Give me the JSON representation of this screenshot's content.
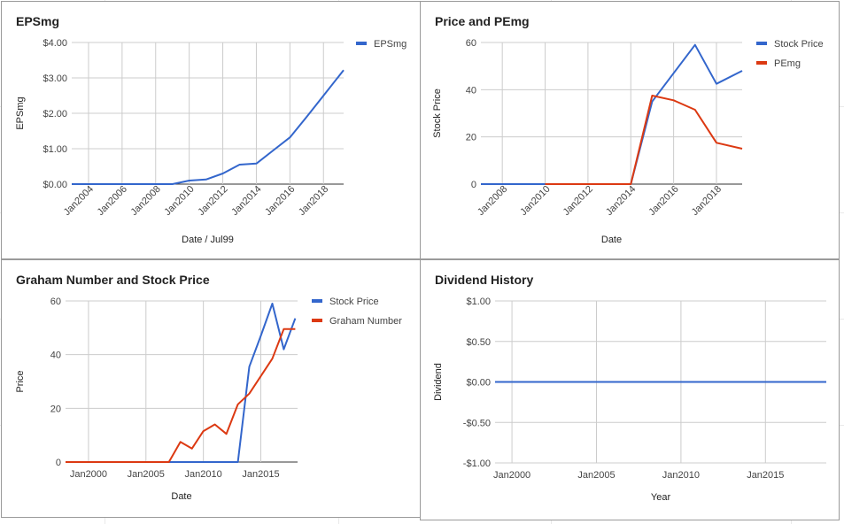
{
  "colors": {
    "blue": "#3366cc",
    "red": "#dc3912",
    "grid": "#cccccc",
    "baseline": "#333333"
  },
  "chart_data": [
    {
      "type": "line",
      "title": "EPSmg",
      "xlabel": "Date / Jul99",
      "ylabel": "EPSmg",
      "xlim": [
        2003,
        2019.2
      ],
      "ylim": [
        0,
        4
      ],
      "yticks": [
        0,
        1,
        2,
        3,
        4
      ],
      "ytick_labels": [
        "$0.00",
        "$1.00",
        "$2.00",
        "$3.00",
        "$4.00"
      ],
      "xticks": [
        2004,
        2006,
        2008,
        2010,
        2012,
        2014,
        2016,
        2018
      ],
      "xtick_labels": [
        "Jan2004",
        "Jan2006",
        "Jan2008",
        "Jan2010",
        "Jan2012",
        "Jan2014",
        "Jan2016",
        "Jan2018"
      ],
      "legend_position": "top-right",
      "series": [
        {
          "name": "EPSmg",
          "color": "blue",
          "x": [
            2003,
            2004,
            2005,
            2006,
            2007,
            2008,
            2009,
            2010,
            2011,
            2012,
            2013,
            2014,
            2015,
            2016,
            2017,
            2018,
            2019.2
          ],
          "y": [
            0,
            0,
            0,
            0,
            0,
            0,
            0,
            0.1,
            0.13,
            0.3,
            0.55,
            0.58,
            0.95,
            1.32,
            1.9,
            2.5,
            3.22
          ]
        }
      ]
    },
    {
      "type": "line",
      "title": "Price and PEmg",
      "xlabel": "Date",
      "ylabel": "Stock Price",
      "xlim": [
        2007,
        2019.2
      ],
      "ylim": [
        0,
        60
      ],
      "yticks": [
        0,
        20,
        40,
        60
      ],
      "ytick_labels": [
        "0",
        "20",
        "40",
        "60"
      ],
      "xticks": [
        2008,
        2010,
        2012,
        2014,
        2016,
        2018
      ],
      "xtick_labels": [
        "Jan2008",
        "Jan2010",
        "Jan2012",
        "Jan2014",
        "Jan2016",
        "Jan2018"
      ],
      "legend_position": "top-right",
      "series": [
        {
          "name": "Stock Price",
          "color": "blue",
          "x": [
            2007,
            2014,
            2015,
            2016,
            2017,
            2018,
            2019.2
          ],
          "y": [
            0,
            0,
            35,
            47,
            59,
            42.5,
            48
          ]
        },
        {
          "name": "PEmg",
          "color": "red",
          "x": [
            2010,
            2014,
            2015,
            2016,
            2017,
            2018,
            2019.2
          ],
          "y": [
            0,
            0,
            37.5,
            35.5,
            31.5,
            17.5,
            15
          ]
        }
      ]
    },
    {
      "type": "line",
      "title": "Graham Number and Stock Price",
      "xlabel": "Date",
      "ylabel": "Price",
      "xlim": [
        1998,
        2018.2
      ],
      "ylim": [
        0,
        60
      ],
      "yticks": [
        0,
        20,
        40,
        60
      ],
      "ytick_labels": [
        "0",
        "20",
        "40",
        "60"
      ],
      "xticks": [
        2000,
        2005,
        2010,
        2015
      ],
      "xtick_labels": [
        "Jan2000",
        "Jan2005",
        "Jan2010",
        "Jan2015"
      ],
      "legend_position": "top-right",
      "series": [
        {
          "name": "Stock Price",
          "color": "blue",
          "x": [
            1998,
            2012,
            2013,
            2014,
            2015,
            2016,
            2017,
            2018
          ],
          "y": [
            0,
            0,
            0,
            35.5,
            47,
            59,
            42,
            53.5
          ]
        },
        {
          "name": "Graham Number",
          "color": "red",
          "x": [
            1998,
            2007,
            2008,
            2009,
            2010,
            2011,
            2012,
            2013,
            2014,
            2015,
            2016,
            2017,
            2018
          ],
          "y": [
            0,
            0,
            7.5,
            5,
            11.5,
            14,
            10.5,
            21.5,
            25.5,
            32,
            38.5,
            49.5,
            49.5
          ]
        }
      ]
    },
    {
      "type": "line",
      "title": "Dividend History",
      "xlabel": "Year",
      "ylabel": "Dividend",
      "xlim": [
        1999,
        2018.6
      ],
      "ylim": [
        -1,
        1
      ],
      "yticks": [
        -1,
        -0.5,
        0,
        0.5,
        1
      ],
      "ytick_labels": [
        "-$1.00",
        "-$0.50",
        "$0.00",
        "$0.50",
        "$1.00"
      ],
      "xticks": [
        2000,
        2005,
        2010,
        2015
      ],
      "xtick_labels": [
        "Jan2000",
        "Jan2005",
        "Jan2010",
        "Jan2015"
      ],
      "series": [
        {
          "name": "Dividend",
          "color": "blue",
          "x": [
            1999,
            2017,
            2018.6
          ],
          "y": [
            0,
            0,
            0
          ]
        }
      ]
    }
  ]
}
